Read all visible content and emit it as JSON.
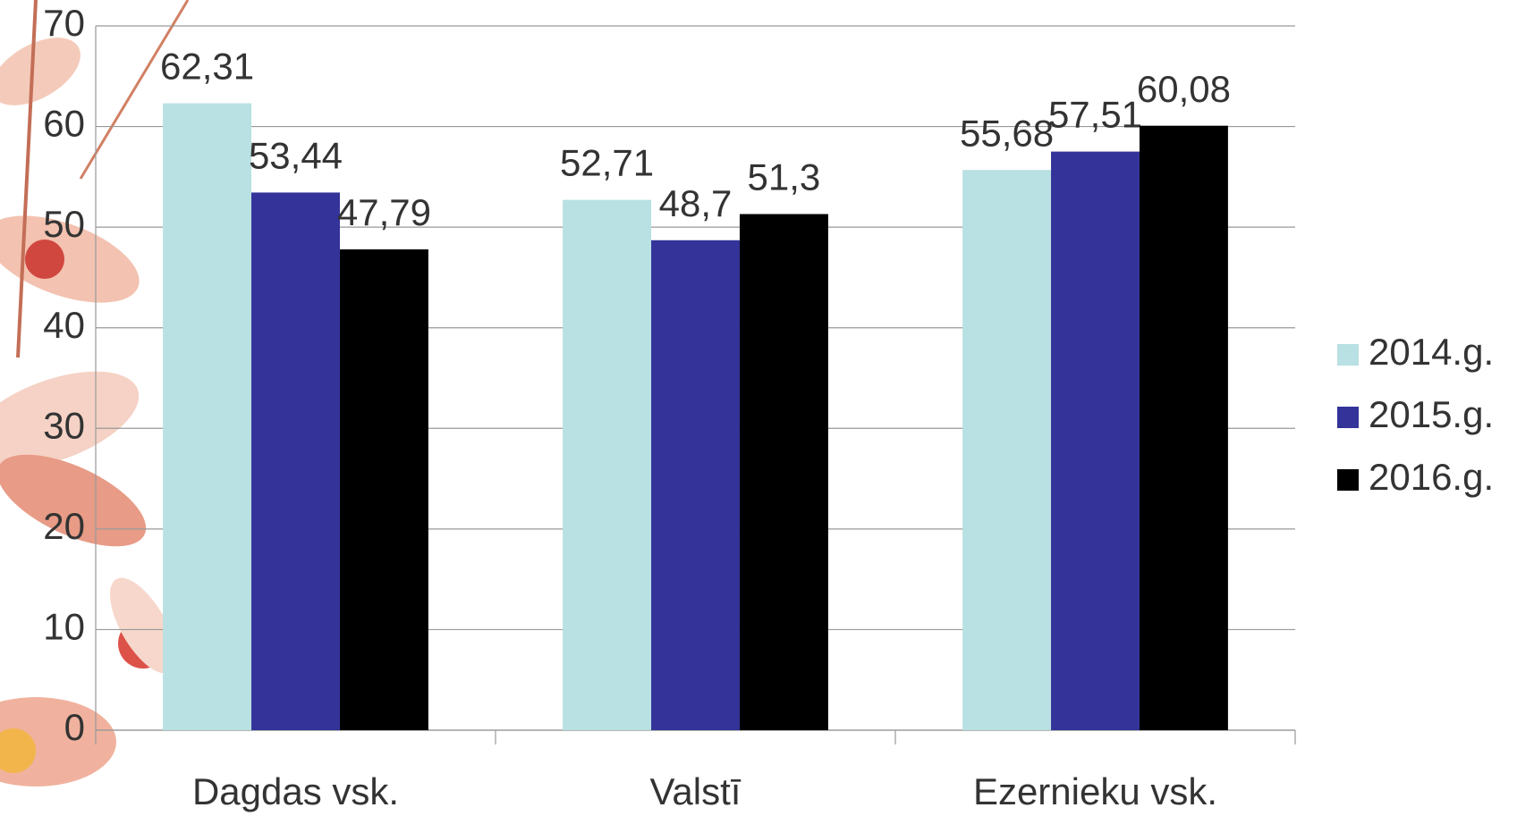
{
  "chart_data": {
    "type": "bar",
    "categories": [
      "Dagdas vsk.",
      "Valstī",
      "Ezernieku vsk."
    ],
    "series": [
      {
        "name": "2014.g.",
        "color": "#b9e0e2",
        "values": [
          62.31,
          52.71,
          55.68
        ],
        "value_labels": [
          "62,31",
          "52,71",
          "55,68"
        ]
      },
      {
        "name": "2015.g.",
        "color": "#333399",
        "values": [
          53.44,
          48.7,
          57.51
        ],
        "value_labels": [
          "53,44",
          "48,7",
          "57,51"
        ]
      },
      {
        "name": "2016.g.",
        "color": "#000000",
        "values": [
          47.79,
          51.3,
          60.08
        ],
        "value_labels": [
          "47,79",
          "51,3",
          "60,08"
        ]
      }
    ],
    "ylim": [
      0,
      70
    ],
    "yticks": [
      0,
      10,
      20,
      30,
      40,
      50,
      60,
      70
    ],
    "grid": true,
    "legend": "right"
  }
}
